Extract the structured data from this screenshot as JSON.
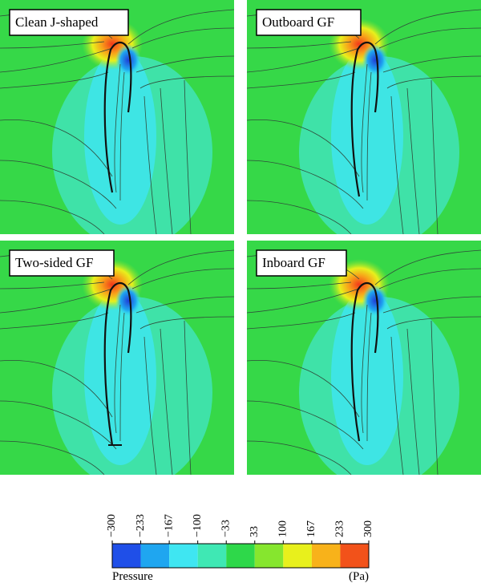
{
  "panels": [
    {
      "label": "Clean J-shaped"
    },
    {
      "label": "Outboard GF"
    },
    {
      "label": "Two-sided GF"
    },
    {
      "label": "Inboard GF"
    }
  ],
  "colorbar": {
    "ticks": [
      "−300",
      "−233",
      "−167",
      "−100",
      "−33",
      "33",
      "100",
      "167",
      "233",
      "300"
    ],
    "colors": [
      "#1f4fe8",
      "#1fa6f0",
      "#3fe6f2",
      "#3fe8b4",
      "#2ed84a",
      "#86e62e",
      "#e8f01c",
      "#f8b21a",
      "#f2521a"
    ],
    "label": "Pressure",
    "unit": "(Pa)"
  }
}
